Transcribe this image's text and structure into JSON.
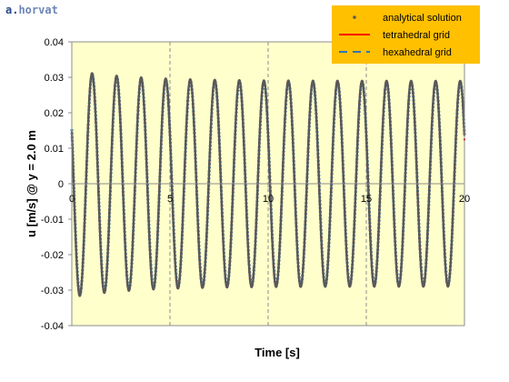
{
  "watermark": {
    "part1": "a.",
    "part2": "horvat"
  },
  "chart_data": {
    "type": "line",
    "xlabel": "Time [s]",
    "ylabel": "u [m/s]  @ y = 2.0 m",
    "xlim": [
      0,
      20
    ],
    "ylim": [
      -0.04,
      0.04
    ],
    "x_ticks": [
      0,
      5,
      10,
      15,
      20
    ],
    "y_ticks": [
      0.04,
      0.03,
      0.02,
      0.01,
      0,
      -0.01,
      -0.02,
      -0.03,
      -0.04
    ],
    "x_tick_labels": [
      "0",
      "5",
      "10",
      "15",
      "20"
    ],
    "y_tick_labels": [
      "0.04",
      "0.03",
      "0.02",
      "0.01",
      "0",
      "-0.01",
      "-0.02",
      "-0.03",
      "-0.04"
    ],
    "grid": "vertical dashed at major x ticks",
    "plot_background": "#ffffcc",
    "legend_position": "top-right",
    "legend_background": "#ffc000",
    "signal": {
      "form": "sinusoid",
      "cycles_between_ticks": "about 4 per 5 s",
      "period_s": 1.25,
      "steady_amplitude": 0.029,
      "first_peak_amplitude": 0.032,
      "initial_value_range": [
        0.01,
        0.017
      ]
    },
    "series": [
      {
        "name": "analytical solution",
        "style": "dotted",
        "color": "#595959"
      },
      {
        "name": "tetrahedral grid",
        "style": "solid",
        "color": "#ff0000"
      },
      {
        "name": "hexahedral grid",
        "style": "dashed",
        "color": "#2e75b6"
      }
    ]
  }
}
